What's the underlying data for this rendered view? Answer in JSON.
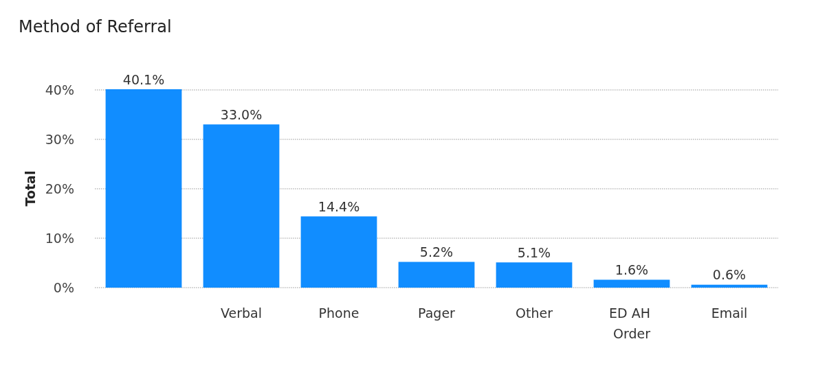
{
  "chart_data": {
    "type": "bar",
    "title": "Method of Referral",
    "ylabel": "Total",
    "categories": [
      null,
      "Verbal",
      "Phone",
      "Pager",
      "Other",
      "ED AH Order",
      "Email"
    ],
    "values": [
      40.1,
      33.0,
      14.4,
      5.2,
      5.1,
      1.6,
      0.6
    ],
    "value_labels": [
      "40.1%",
      "33.0%",
      "14.4%",
      "5.2%",
      "5.1%",
      "1.6%",
      "0.6%"
    ],
    "color": "#118dff",
    "ylim": [
      0,
      40.1
    ],
    "yticks": [
      {
        "value": 0,
        "label": "0%"
      },
      {
        "value": 10,
        "label": "10%"
      },
      {
        "value": 20,
        "label": "20%"
      },
      {
        "value": 30,
        "label": "30%"
      },
      {
        "value": 40,
        "label": "40%"
      }
    ],
    "grid": "y"
  }
}
